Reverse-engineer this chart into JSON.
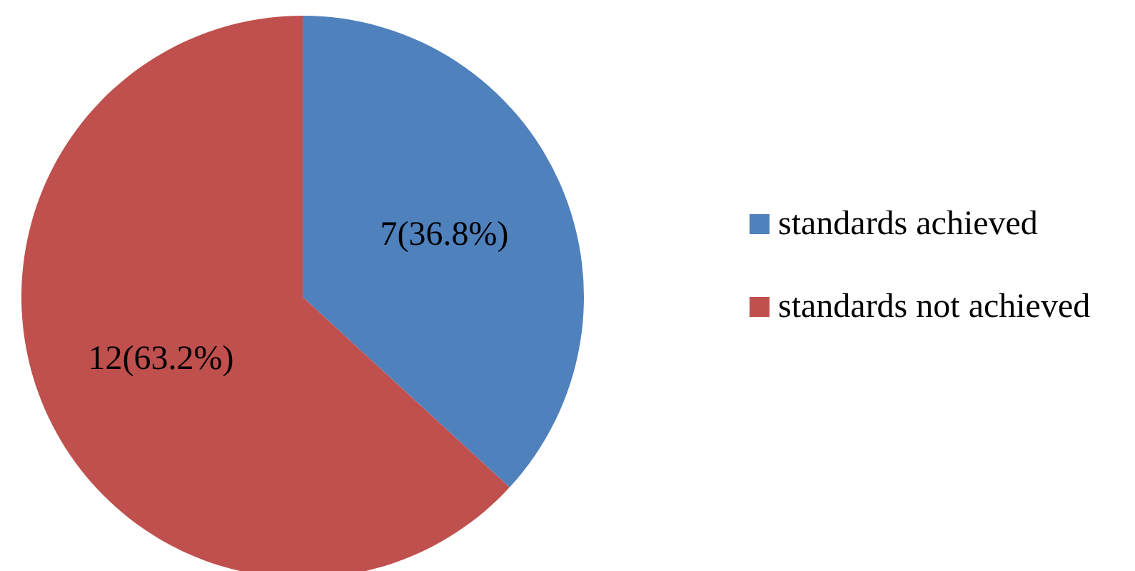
{
  "chart_data": {
    "type": "pie",
    "categories": [
      "standards achieved",
      "standards not achieved"
    ],
    "values": [
      7,
      12
    ],
    "colors": [
      "#4f81bd",
      "#c0504d"
    ],
    "value_labels": [
      "7(36.8%)",
      "12(63.2%)"
    ],
    "legend": "right"
  }
}
